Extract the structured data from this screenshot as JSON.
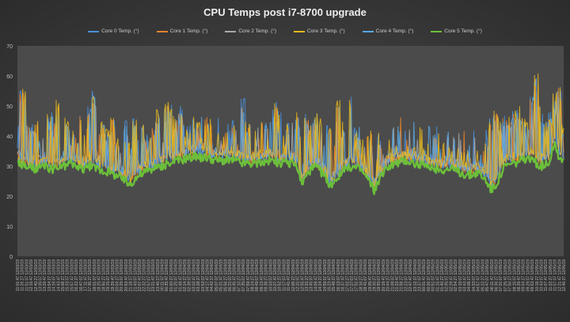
{
  "chart_data": {
    "type": "line",
    "title": "CPU Temps post i7-8700 upgrade",
    "ylim": [
      0,
      70
    ],
    "yticks": [
      0,
      10,
      20,
      30,
      40,
      50,
      60,
      70
    ],
    "grid": false,
    "legend_position": "top",
    "series": [
      {
        "name": "Core 0 Temp. (°)",
        "color": "#4a90d9"
      },
      {
        "name": "Core 1 Temp. (°)",
        "color": "#e8832a"
      },
      {
        "name": "Core 2 Temp. (°)",
        "color": "#a8a8a8"
      },
      {
        "name": "Core 3 Temp. (°)",
        "color": "#e6b81c"
      },
      {
        "name": "Core 4 Temp. (°)",
        "color": "#5aa6e0"
      },
      {
        "name": "Core 5 Temp. (°)",
        "color": "#6cbf3a"
      }
    ],
    "x_tick_labels": [
      "11:01:47 12/03/19",
      "11:26:27 12/03/19",
      "11:51:07 12/03/19",
      "12:15:47 12/03/19",
      "12:40:27 12/03/19",
      "13:05:07 12/03/19",
      "13:29:47 12/03/19",
      "13:54:27 12/03/19",
      "14:19:07 12/03/19",
      "14:43:47 12/03/19",
      "15:08:27 12/03/19",
      "15:33:07 12/03/19",
      "15:57:47 12/03/19",
      "16:22:27 12/03/19",
      "16:47:07 12/03/19",
      "17:11:47 12/03/19",
      "17:36:27 12/03/19",
      "18:01:07 12/03/19",
      "18:25:47 12/03/19",
      "18:50:27 12/03/19",
      "19:15:07 12/03/19",
      "19:39:47 12/03/19",
      "20:04:27 12/03/19",
      "20:29:07 12/03/19",
      "20:53:47 12/03/19",
      "21:18:27 12/03/19",
      "21:43:07 12/03/19",
      "22:07:47 12/03/19",
      "22:32:27 12/03/19",
      "22:57:07 12/03/19",
      "23:21:47 12/03/19",
      "23:46:27 12/03/19",
      "00:11:07 12/04/19",
      "00:35:47 12/04/19",
      "01:00:27 12/04/19",
      "01:25:07 12/04/19",
      "01:49:47 12/04/19",
      "02:14:27 12/04/19",
      "02:39:07 12/04/19",
      "03:03:47 12/04/19",
      "03:28:27 12/04/19",
      "03:53:07 12/04/19",
      "04:17:47 12/04/19",
      "04:42:27 12/04/19",
      "05:07:07 12/04/19",
      "05:31:47 12/04/19",
      "05:56:27 12/04/19",
      "06:21:07 12/04/19",
      "06:45:47 12/04/19",
      "07:10:27 12/04/19",
      "07:35:07 12/04/19",
      "07:59:47 12/04/19",
      "08:24:27 12/04/19",
      "08:49:07 12/04/19",
      "09:13:47 12/04/19",
      "09:38:27 12/04/19",
      "10:03:07 12/04/19",
      "10:27:47 12/04/19",
      "10:52:27 12/04/19",
      "11:17:07 12/04/19",
      "11:41:47 12/04/19",
      "12:06:27 12/04/19",
      "12:31:07 12/04/19",
      "12:55:47 12/04/19",
      "13:20:27 12/04/19",
      "13:45:07 12/04/19",
      "14:09:47 12/04/19",
      "14:34:27 12/04/19",
      "14:59:07 12/04/19",
      "15:23:47 12/04/19",
      "15:48:27 12/04/19",
      "16:13:07 12/04/19",
      "16:37:47 12/04/19",
      "17:02:27 12/04/19",
      "17:27:07 12/04/19",
      "17:51:47 12/04/19",
      "18:16:27 12/04/19",
      "18:41:07 12/04/19",
      "19:05:47 12/04/19",
      "19:30:27 12/04/19",
      "19:55:07 12/04/19",
      "20:19:47 12/04/19",
      "20:44:27 12/04/19",
      "21:09:07 12/04/19",
      "21:33:47 12/04/19",
      "21:58:27 12/04/19",
      "22:23:07 12/04/19",
      "22:47:47 12/04/19",
      "23:12:27 12/04/19",
      "23:37:07 12/04/19",
      "00:01:47 12/05/19",
      "00:26:27 12/05/19",
      "00:51:07 12/05/19",
      "01:15:47 12/05/19",
      "01:40:27 12/05/19",
      "02:05:07 12/05/19",
      "02:29:47 12/05/19",
      "02:54:27 12/05/19",
      "03:19:07 12/05/19",
      "03:43:47 12/05/19",
      "04:08:27 12/05/19",
      "04:33:07 12/05/19",
      "04:57:47 12/05/19",
      "05:22:27 12/05/19",
      "05:47:07 12/05/19",
      "06:11:47 12/05/19",
      "06:36:27 12/05/19",
      "07:01:07 12/05/19",
      "07:25:47 12/05/19",
      "07:50:27 12/05/19",
      "08:15:07 12/05/19",
      "08:39:47 12/05/19",
      "09:04:27 12/05/19",
      "09:29:07 12/05/19",
      "09:53:47 12/05/19",
      "10:18:27 12/05/19",
      "10:43:07 12/05/19",
      "11:07:47 12/05/19",
      "11:32:27 12/05/19",
      "11:57:07 12/05/19",
      "12:21:47 12/05/19",
      "12:46:27 12/05/19"
    ],
    "core5_profile": [
      [
        0,
        31
      ],
      [
        2,
        30
      ],
      [
        4,
        29
      ],
      [
        6,
        30
      ],
      [
        8,
        29
      ],
      [
        10,
        30
      ],
      [
        12,
        31
      ],
      [
        14,
        29
      ],
      [
        16,
        30
      ],
      [
        18,
        29
      ],
      [
        20,
        28
      ],
      [
        22,
        27
      ],
      [
        24,
        25
      ],
      [
        25,
        24
      ],
      [
        26,
        26
      ],
      [
        28,
        28
      ],
      [
        30,
        29
      ],
      [
        32,
        30
      ],
      [
        34,
        31
      ],
      [
        36,
        32
      ],
      [
        38,
        33
      ],
      [
        40,
        33
      ],
      [
        42,
        33
      ],
      [
        44,
        32
      ],
      [
        46,
        32
      ],
      [
        48,
        32
      ],
      [
        50,
        31
      ],
      [
        52,
        31
      ],
      [
        54,
        31
      ],
      [
        56,
        32
      ],
      [
        58,
        31
      ],
      [
        60,
        31
      ],
      [
        62,
        30
      ],
      [
        63,
        24
      ],
      [
        64,
        27
      ],
      [
        66,
        30
      ],
      [
        68,
        27
      ],
      [
        69,
        23
      ],
      [
        70,
        25
      ],
      [
        72,
        28
      ],
      [
        74,
        30
      ],
      [
        76,
        29
      ],
      [
        78,
        25
      ],
      [
        79,
        22
      ],
      [
        80,
        25
      ],
      [
        82,
        30
      ],
      [
        84,
        31
      ],
      [
        86,
        32
      ],
      [
        88,
        31
      ],
      [
        90,
        30
      ],
      [
        92,
        29
      ],
      [
        94,
        29
      ],
      [
        96,
        29
      ],
      [
        98,
        28
      ],
      [
        100,
        27
      ],
      [
        102,
        28
      ],
      [
        104,
        25
      ],
      [
        105,
        22
      ],
      [
        106,
        24
      ],
      [
        108,
        30
      ],
      [
        110,
        31
      ],
      [
        112,
        32
      ],
      [
        114,
        32
      ],
      [
        116,
        30
      ],
      [
        118,
        32
      ],
      [
        119,
        38
      ],
      [
        120,
        33
      ],
      [
        122,
        31
      ],
      [
        124,
        30
      ]
    ],
    "core_spikes": [
      [
        1,
        57
      ],
      [
        2,
        55
      ],
      [
        3,
        45
      ],
      [
        4,
        46
      ],
      [
        7,
        48
      ],
      [
        8,
        49
      ],
      [
        9,
        52
      ],
      [
        11,
        47
      ],
      [
        12,
        42
      ],
      [
        14,
        49
      ],
      [
        16,
        50
      ],
      [
        17,
        55
      ],
      [
        19,
        45
      ],
      [
        20,
        43
      ],
      [
        21,
        49
      ],
      [
        22,
        41
      ],
      [
        24,
        46
      ],
      [
        25,
        40
      ],
      [
        26,
        47
      ],
      [
        28,
        44
      ],
      [
        29,
        41
      ],
      [
        31,
        49
      ],
      [
        33,
        52
      ],
      [
        34,
        51
      ],
      [
        35,
        48
      ],
      [
        36,
        50
      ],
      [
        38,
        44
      ],
      [
        40,
        46
      ],
      [
        41,
        40
      ],
      [
        42,
        44
      ],
      [
        46,
        43
      ],
      [
        48,
        46
      ],
      [
        50,
        53
      ],
      [
        51,
        46
      ],
      [
        53,
        44
      ],
      [
        55,
        47
      ],
      [
        57,
        52
      ],
      [
        58,
        50
      ],
      [
        60,
        45
      ],
      [
        62,
        50
      ],
      [
        64,
        48
      ],
      [
        65,
        45
      ],
      [
        66,
        49
      ],
      [
        67,
        46
      ],
      [
        69,
        44
      ],
      [
        71,
        52
      ],
      [
        72,
        45
      ],
      [
        74,
        53
      ],
      [
        75,
        44
      ],
      [
        76,
        39
      ],
      [
        78,
        43
      ],
      [
        80,
        41
      ],
      [
        82,
        36
      ],
      [
        84,
        38
      ],
      [
        86,
        37
      ],
      [
        88,
        38
      ],
      [
        90,
        37
      ],
      [
        92,
        36
      ],
      [
        94,
        38
      ],
      [
        96,
        37
      ],
      [
        98,
        36
      ],
      [
        100,
        36
      ],
      [
        104,
        42
      ],
      [
        105,
        48
      ],
      [
        106,
        50
      ],
      [
        107,
        46
      ],
      [
        108,
        49
      ],
      [
        109,
        48
      ],
      [
        110,
        50
      ],
      [
        111,
        51
      ],
      [
        112,
        48
      ],
      [
        113,
        45
      ],
      [
        114,
        55
      ],
      [
        115,
        62
      ],
      [
        116,
        50
      ],
      [
        117,
        47
      ],
      [
        118,
        48
      ],
      [
        119,
        55
      ],
      [
        120,
        58
      ],
      [
        121,
        44
      ],
      [
        123,
        49
      ]
    ]
  }
}
